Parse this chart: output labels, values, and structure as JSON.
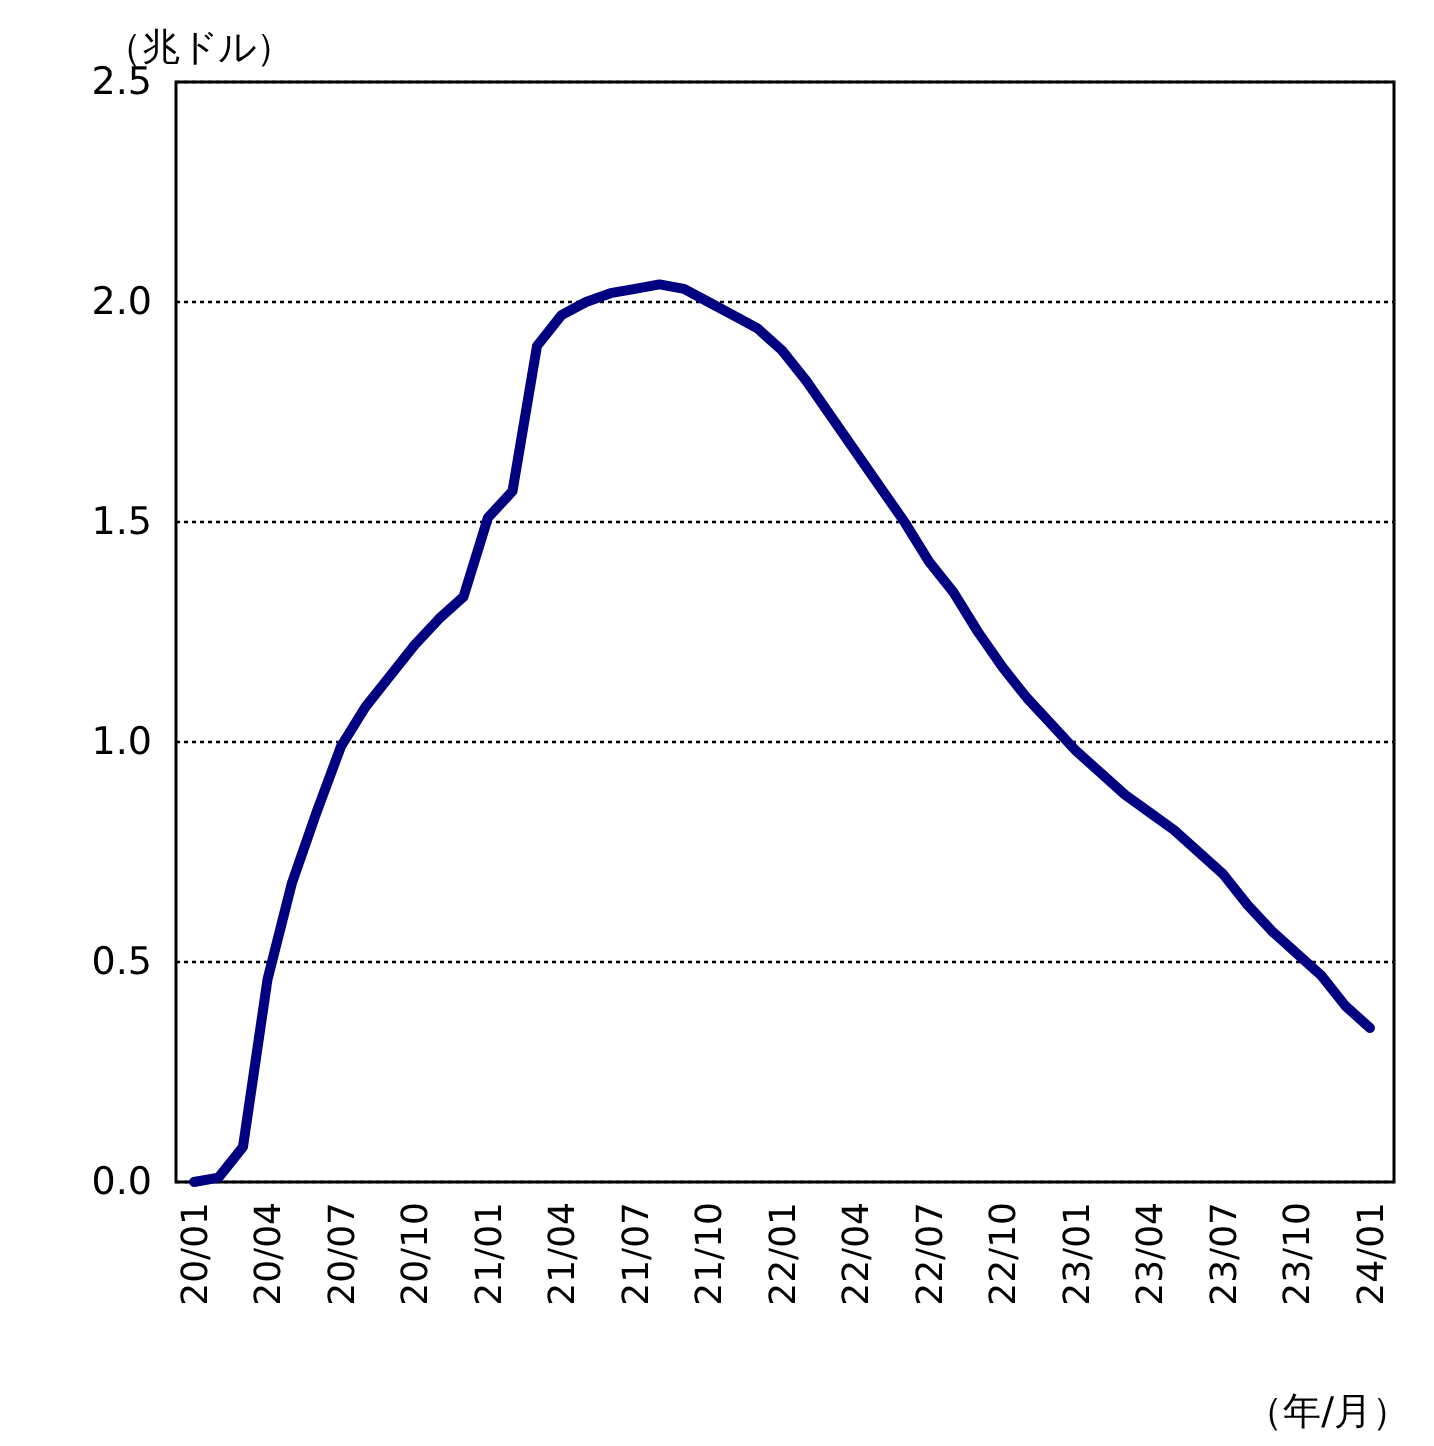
{
  "chart_data": {
    "type": "line",
    "ylabel": "（兆ドル）",
    "xlabel": "（年/月）",
    "categories": [
      "20/01",
      null,
      null,
      "20/04",
      null,
      null,
      "20/07",
      null,
      null,
      "20/10",
      null,
      null,
      "21/01",
      null,
      null,
      "21/04",
      null,
      null,
      "21/07",
      null,
      null,
      "21/10",
      null,
      null,
      "22/01",
      null,
      null,
      "22/04",
      null,
      null,
      "22/07",
      null,
      null,
      "22/10",
      null,
      null,
      "23/01",
      null,
      null,
      "23/04",
      null,
      null,
      "23/07",
      null,
      null,
      "23/10",
      null,
      null,
      "24/01"
    ],
    "series": [
      {
        "color": "#000080",
        "values": [
          0.0,
          0.01,
          0.08,
          0.46,
          0.68,
          0.84,
          0.99,
          1.08,
          1.15,
          1.22,
          1.28,
          1.33,
          1.51,
          1.57,
          1.9,
          1.97,
          2.0,
          2.02,
          2.03,
          2.04,
          2.03,
          2.0,
          1.97,
          1.94,
          1.89,
          1.82,
          1.74,
          1.66,
          1.58,
          1.5,
          1.41,
          1.34,
          1.25,
          1.17,
          1.1,
          1.04,
          0.98,
          0.93,
          0.88,
          0.84,
          0.8,
          0.75,
          0.7,
          0.63,
          0.57,
          0.52,
          0.47,
          0.4,
          0.35
        ]
      }
    ],
    "ylim": [
      0,
      2.5
    ],
    "yticks": [
      {
        "value": 0,
        "label": "0.0"
      },
      {
        "value": 0.5,
        "label": "0.5"
      },
      {
        "value": 1,
        "label": "1.0"
      },
      {
        "value": 1.5,
        "label": "1.5"
      },
      {
        "value": 2,
        "label": "2.0"
      },
      {
        "value": 2.5,
        "label": "2.5"
      }
    ],
    "grid": "y",
    "marker": "none",
    "line_style": "solid"
  }
}
